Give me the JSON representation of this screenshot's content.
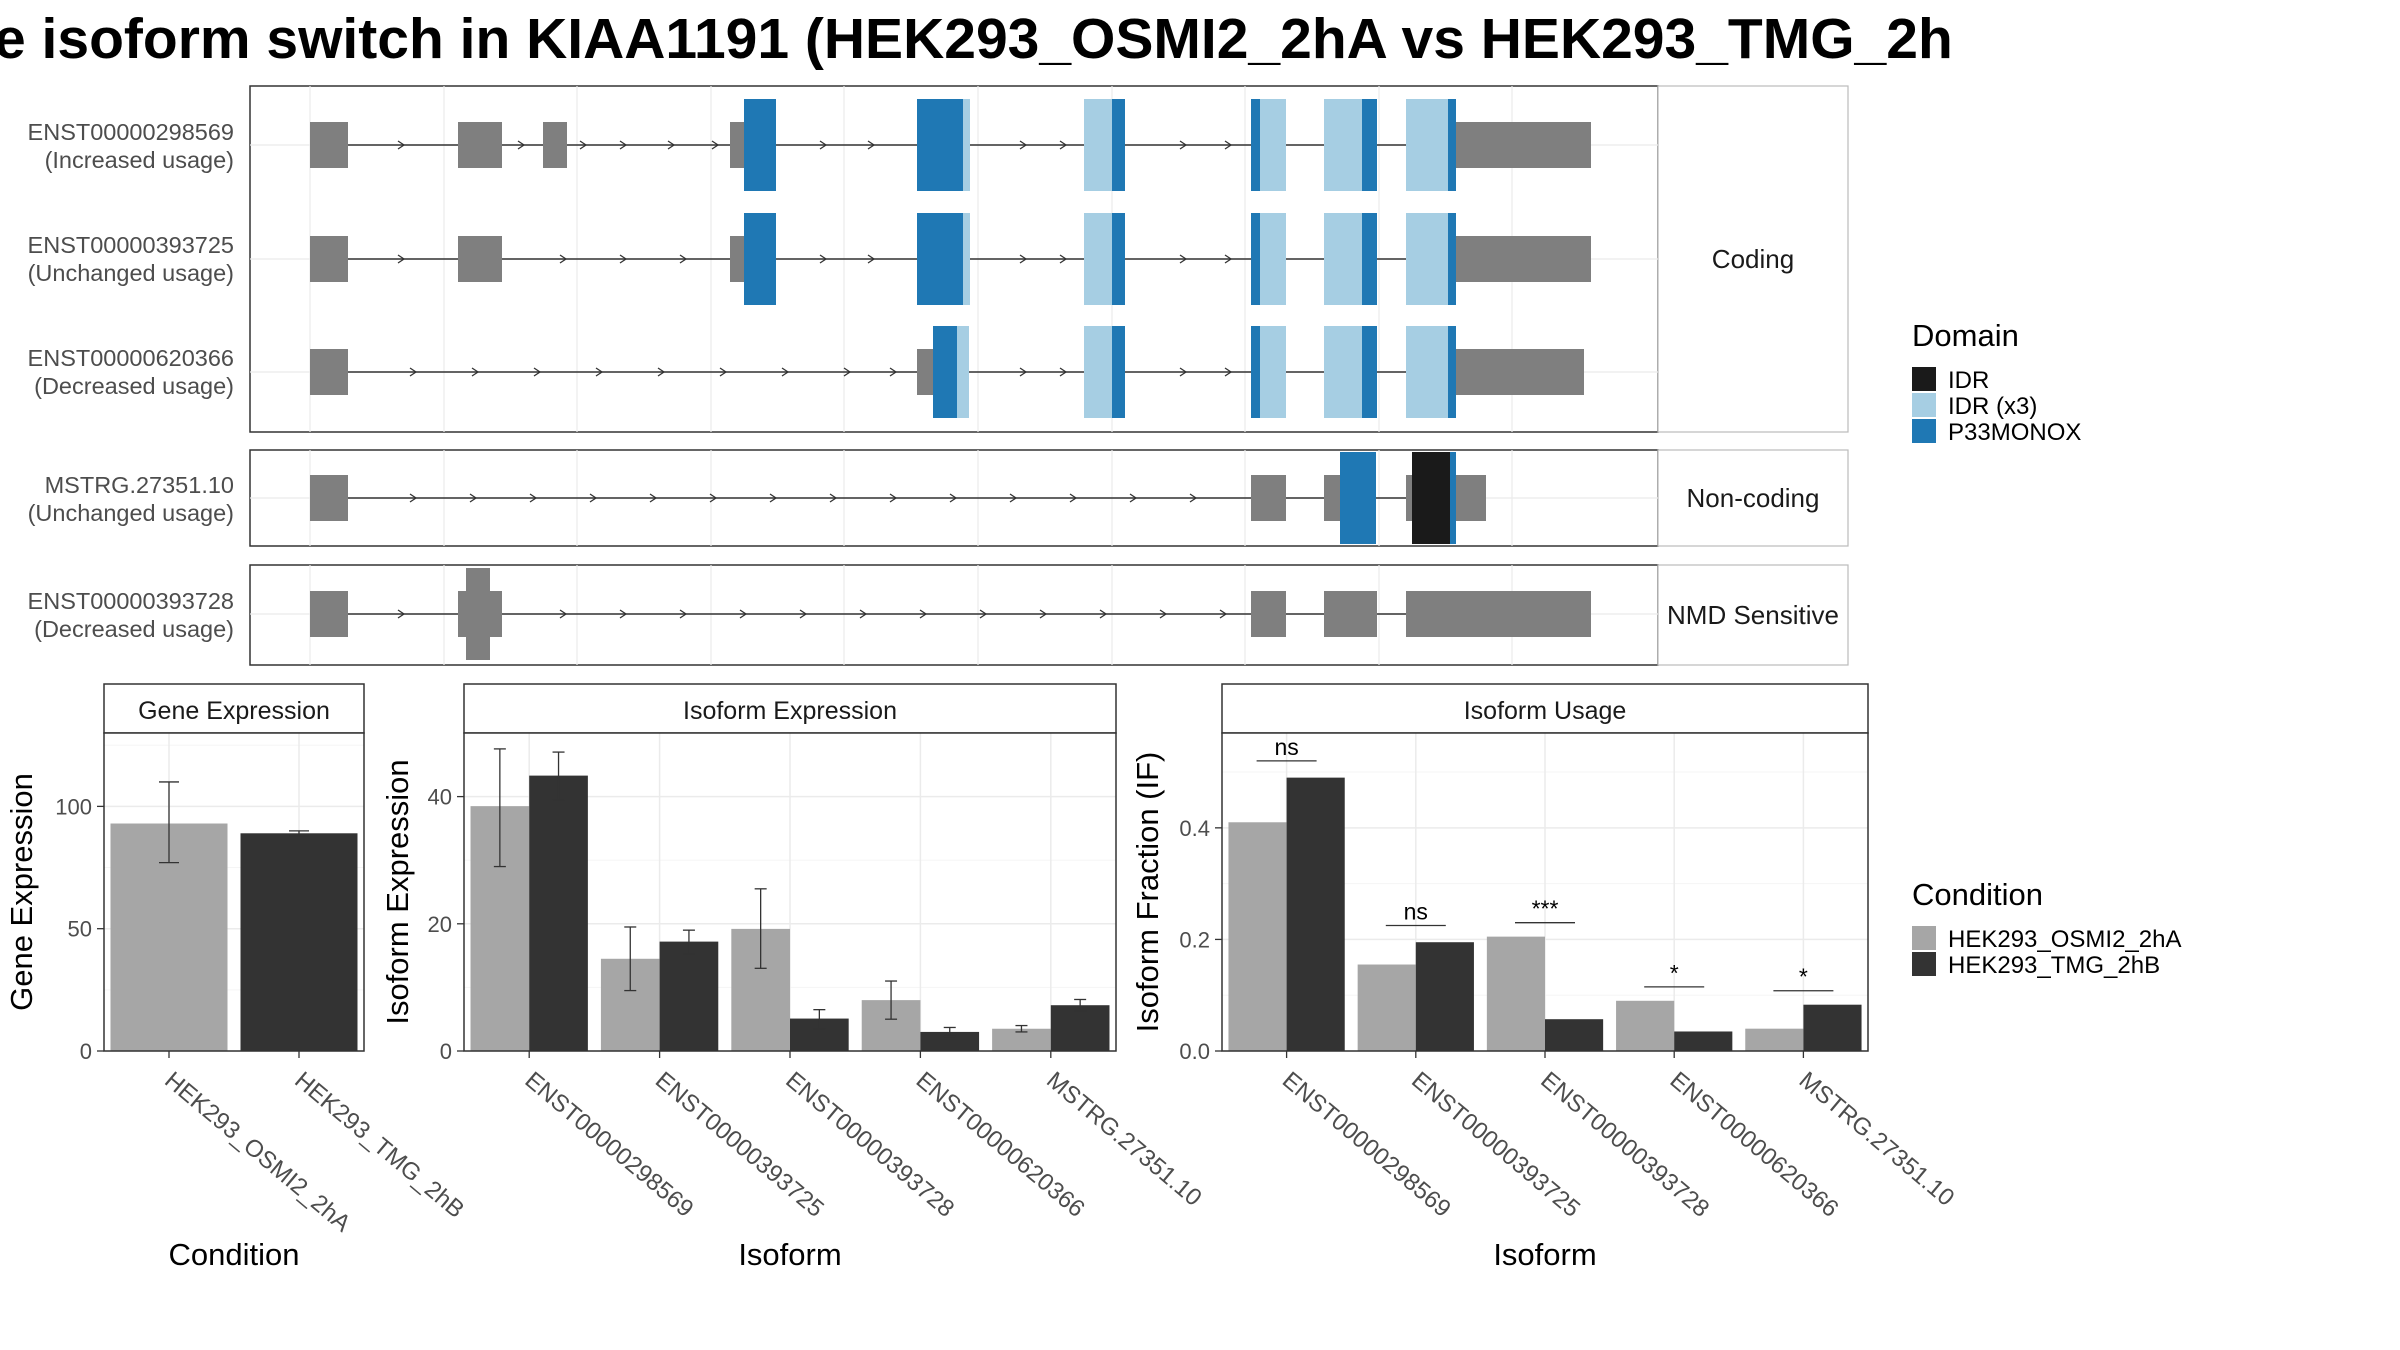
{
  "title": "e isoform switch in KIAA1191 (HEK293_OSMI2_2hA vs HEK293_TMG_2h",
  "colors": {
    "exon": "#7f7f7f",
    "IDR": "#1a1a1a",
    "IDR_x3": "#a6cee3",
    "P33MONOX": "#1f78b4",
    "condA": "#a6a6a6",
    "condB": "#333333"
  },
  "transcripts": {
    "panels": [
      {
        "category": "Coding",
        "rows": [
          {
            "id": "ENST00000298569",
            "usage": "(Increased usage)"
          },
          {
            "id": "ENST00000393725",
            "usage": "(Unchanged usage)"
          },
          {
            "id": "ENST00000620366",
            "usage": "(Decreased usage)"
          }
        ]
      },
      {
        "category": "Non-coding",
        "rows": [
          {
            "id": "MSTRG.27351.10",
            "usage": "(Unchanged usage)"
          }
        ]
      },
      {
        "category": "NMD Sensitive",
        "rows": [
          {
            "id": "ENST00000393728",
            "usage": "(Decreased usage)"
          }
        ]
      }
    ]
  },
  "legend_domain": {
    "title": "Domain",
    "items": [
      {
        "label": "IDR",
        "color": "#1a1a1a"
      },
      {
        "label": "IDR (x3)",
        "color": "#a6cee3"
      },
      {
        "label": "P33MONOX",
        "color": "#1f78b4"
      }
    ]
  },
  "legend_condition": {
    "title": "Condition",
    "items": [
      {
        "label": "HEK293_OSMI2_2hA",
        "color": "#a6a6a6"
      },
      {
        "label": "HEK293_TMG_2hB",
        "color": "#333333"
      }
    ]
  },
  "chart_data": [
    {
      "type": "bar",
      "title": "Gene Expression",
      "xlabel": "Condition",
      "ylabel": "Gene Expression",
      "categories": [
        "HEK293_OSMI2_2hA",
        "HEK293_TMG_2hB"
      ],
      "values": [
        93,
        89
      ],
      "errors": [
        [
          77,
          110
        ],
        [
          88,
          90
        ]
      ],
      "ylim": [
        0,
        130
      ],
      "yticks": [
        0,
        50,
        100
      ],
      "grid": true
    },
    {
      "type": "bar",
      "title": "Isoform Expression",
      "xlabel": "Isoform",
      "ylabel": "Isoform Expression",
      "categories": [
        "ENST00000298569",
        "ENST00000393725",
        "ENST00000393728",
        "ENST00000620366",
        "MSTRG.27351.10"
      ],
      "series": [
        {
          "name": "HEK293_OSMI2_2hA",
          "values": [
            38.5,
            14.5,
            19.2,
            8.0,
            3.5
          ],
          "errors": [
            [
              29,
              47.5
            ],
            [
              9.5,
              19.5
            ],
            [
              13,
              25.5
            ],
            [
              5,
              11
            ],
            [
              3,
              4
            ]
          ]
        },
        {
          "name": "HEK293_TMG_2hB",
          "values": [
            43.3,
            17.2,
            5.1,
            3.0,
            7.2
          ],
          "errors": [
            [
              39.5,
              47
            ],
            [
              15.3,
              19
            ],
            [
              3.5,
              6.5
            ],
            [
              2.3,
              3.7
            ],
            [
              6.3,
              8.1
            ]
          ]
        }
      ],
      "ylim": [
        0,
        50
      ],
      "yticks": [
        0,
        20,
        40
      ],
      "grid": true
    },
    {
      "type": "bar",
      "title": "Isoform Usage",
      "xlabel": "Isoform",
      "ylabel": "Isoform Fraction (IF)",
      "categories": [
        "ENST00000298569",
        "ENST00000393725",
        "ENST00000393728",
        "ENST00000620366",
        "MSTRG.27351.10"
      ],
      "series": [
        {
          "name": "HEK293_OSMI2_2hA",
          "values": [
            0.41,
            0.155,
            0.205,
            0.09,
            0.04
          ]
        },
        {
          "name": "HEK293_TMG_2hB",
          "values": [
            0.49,
            0.195,
            0.057,
            0.035,
            0.083
          ]
        }
      ],
      "significance": [
        "ns",
        "ns",
        "***",
        "*",
        "*"
      ],
      "significance_y": [
        0.52,
        0.225,
        0.23,
        0.115,
        0.108
      ],
      "ylim": [
        0,
        0.57
      ],
      "yticks": [
        0.0,
        0.2,
        0.4
      ],
      "ytick_labels": [
        "0.0",
        "0.2",
        "0.4"
      ],
      "grid": true
    }
  ]
}
